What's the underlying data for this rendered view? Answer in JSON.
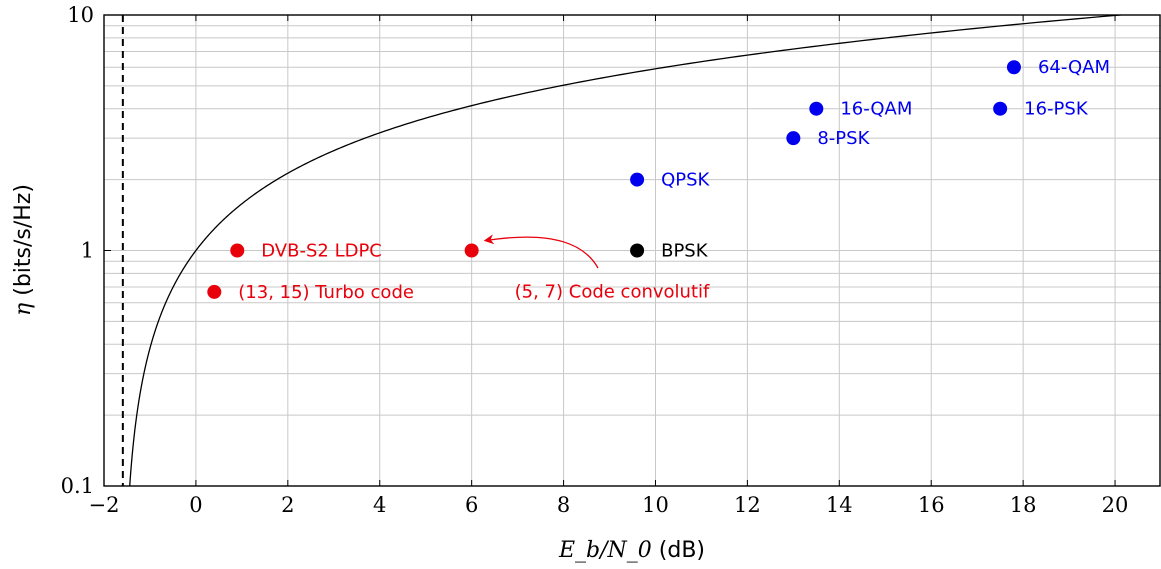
{
  "chart_data": {
    "type": "scatter",
    "xlabel_math": "E_b/N_0",
    "xlabel_unit": "(dB)",
    "ylabel_math": "η",
    "ylabel_unit": "(bits/s/Hz)",
    "xlim": [
      -2,
      21
    ],
    "ylim": [
      0.1,
      10
    ],
    "yscale": "log",
    "grid": true,
    "x_ticks": [
      "−2",
      "0",
      "2",
      "4",
      "6",
      "8",
      "10",
      "12",
      "14",
      "16",
      "18",
      "20"
    ],
    "x_tick_values": [
      -2,
      0,
      2,
      4,
      6,
      8,
      10,
      12,
      14,
      16,
      18,
      20
    ],
    "y_ticks": [
      "0.1",
      "1",
      "10"
    ],
    "y_tick_values": [
      0.1,
      1,
      10
    ],
    "shannon_limit_db": -1.59,
    "curve": "Shannon capacity bound",
    "points": [
      {
        "x": 0.4,
        "y": 0.667,
        "color": "#e8000b",
        "label": "(13, 15) Turbo code"
      },
      {
        "x": 0.9,
        "y": 1,
        "color": "#e8000b",
        "label": "DVB-S2 LDPC"
      },
      {
        "x": 6.0,
        "y": 1,
        "color": "#e8000b",
        "label": "(5, 7) Code convolutif"
      },
      {
        "x": 9.6,
        "y": 1,
        "color": "#000000",
        "label": "BPSK"
      },
      {
        "x": 9.6,
        "y": 2,
        "color": "#0000ee",
        "label": "QPSK"
      },
      {
        "x": 13.0,
        "y": 3,
        "color": "#0000ee",
        "label": "8-PSK"
      },
      {
        "x": 13.5,
        "y": 4,
        "color": "#0000ee",
        "label": "16-QAM"
      },
      {
        "x": 17.5,
        "y": 4,
        "color": "#0000ee",
        "label": "16-PSK"
      },
      {
        "x": 17.8,
        "y": 6,
        "color": "#0000ee",
        "label": "64-QAM"
      }
    ]
  }
}
